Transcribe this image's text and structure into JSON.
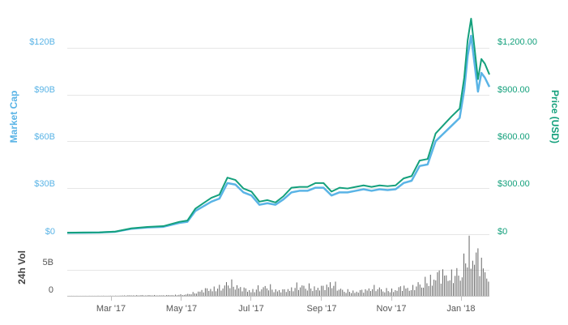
{
  "chart_data": {
    "type": "line",
    "x": [
      "2017-01-22",
      "2017-02-05",
      "2017-02-19",
      "2017-03-05",
      "2017-03-19",
      "2017-04-02",
      "2017-04-16",
      "2017-04-30",
      "2017-05-07",
      "2017-05-14",
      "2017-05-21",
      "2017-05-28",
      "2017-06-04",
      "2017-06-11",
      "2017-06-18",
      "2017-06-25",
      "2017-07-02",
      "2017-07-09",
      "2017-07-16",
      "2017-07-23",
      "2017-07-30",
      "2017-08-06",
      "2017-08-13",
      "2017-08-20",
      "2017-08-27",
      "2017-09-03",
      "2017-09-10",
      "2017-09-17",
      "2017-09-24",
      "2017-10-01",
      "2017-10-08",
      "2017-10-15",
      "2017-10-22",
      "2017-10-29",
      "2017-11-05",
      "2017-11-12",
      "2017-11-19",
      "2017-11-26",
      "2017-12-03",
      "2017-12-10",
      "2017-12-17",
      "2017-12-24",
      "2017-12-31",
      "2018-01-04",
      "2018-01-07",
      "2018-01-10",
      "2018-01-13",
      "2018-01-16",
      "2018-01-19",
      "2018-01-22",
      "2018-01-26"
    ],
    "series": [
      {
        "name": "Market Cap",
        "axis": "left",
        "color": "#5ab4e6",
        "values": [
          0.9,
          1.0,
          1.1,
          1.6,
          3.5,
          4.4,
          4.8,
          7.3,
          8.0,
          15.0,
          18.0,
          21.0,
          23.0,
          33.0,
          32.0,
          27.0,
          25.0,
          19.0,
          20.0,
          19.0,
          22.5,
          27.0,
          28.0,
          28.0,
          30.0,
          30.0,
          25.0,
          27.0,
          27.0,
          28.0,
          29.0,
          28.0,
          29.0,
          28.5,
          29.0,
          33.0,
          34.5,
          44.0,
          45.0,
          60.0,
          65.0,
          70.0,
          75.0,
          93.0,
          115.0,
          128.0,
          110.0,
          92.0,
          104.0,
          101.0,
          95.0
        ]
      },
      {
        "name": "Price (USD)",
        "axis": "right",
        "color": "#14a07c",
        "values": [
          10,
          11,
          12,
          17,
          38,
          47,
          52,
          80,
          88,
          165,
          200,
          235,
          255,
          365,
          350,
          295,
          275,
          210,
          220,
          205,
          245,
          300,
          305,
          305,
          330,
          330,
          275,
          300,
          295,
          305,
          315,
          305,
          315,
          310,
          315,
          360,
          375,
          475,
          485,
          650,
          705,
          760,
          810,
          1010,
          1250,
          1390,
          1200,
          1000,
          1130,
          1100,
          1030
        ]
      }
    ],
    "volume": {
      "name": "24h Vol",
      "color": "#666666",
      "values": [
        0.01,
        0.01,
        0.02,
        0.03,
        0.1,
        0.12,
        0.1,
        0.2,
        0.3,
        0.6,
        1.1,
        1.4,
        1.5,
        2.4,
        2.0,
        1.3,
        1.0,
        1.5,
        1.8,
        1.1,
        1.0,
        1.4,
        2.0,
        1.7,
        1.5,
        1.6,
        2.5,
        1.3,
        0.9,
        0.8,
        1.0,
        1.5,
        1.4,
        1.0,
        1.2,
        1.7,
        1.3,
        2.4,
        2.7,
        3.8,
        4.3,
        3.6,
        4.7,
        6.0,
        8.2,
        9.1,
        7.2,
        7.6,
        6.0,
        5.0,
        3.3
      ]
    },
    "left_axis": {
      "title": "Market Cap",
      "ticks": [
        "$0",
        "$30B",
        "$60B",
        "$90B",
        "$120B"
      ],
      "tick_values": [
        0,
        30,
        60,
        90,
        120
      ],
      "range": [
        0,
        150
      ]
    },
    "right_axis": {
      "title": "Price (USD)",
      "ticks": [
        "$0",
        "$300.00",
        "$600.00",
        "$900.00",
        "$1,200.00"
      ],
      "tick_values": [
        0,
        300,
        600,
        900,
        1200
      ],
      "range": [
        0,
        1500
      ]
    },
    "volume_axis": {
      "title": "24h Vol",
      "ticks": [
        "0",
        "5B"
      ],
      "tick_values": [
        0,
        5
      ],
      "range": [
        0,
        10
      ]
    },
    "x_axis": {
      "ticks": [
        "Mar '17",
        "May '17",
        "Jul '17",
        "Sep '17",
        "Nov '17",
        "Jan '18"
      ],
      "tick_dates": [
        "2017-03-01",
        "2017-05-01",
        "2017-07-01",
        "2017-09-01",
        "2017-11-01",
        "2018-01-01"
      ],
      "range": [
        "2017-01-22",
        "2018-01-26"
      ]
    },
    "grid": true,
    "legend": "none"
  }
}
